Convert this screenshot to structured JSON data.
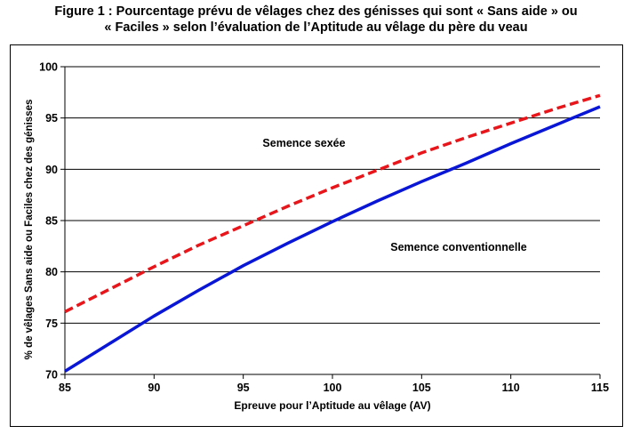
{
  "title_line1": "Figure 1 : Pourcentage prévu de vêlages chez des génisses qui sont « Sans aide » ou",
  "title_line2": "« Faciles » selon l’évaluation  de l’Aptitude  au vêlage du père du veau",
  "chart_data": {
    "type": "line",
    "xlabel": "Epreuve pour l’Aptitude au vêlage (AV)",
    "ylabel": "% de vêlages Sans aide ou Faciles chez des génisses",
    "xlim": [
      85,
      115
    ],
    "ylim": [
      70,
      100
    ],
    "xticks": [
      85,
      90,
      95,
      100,
      105,
      110,
      115
    ],
    "yticks": [
      70,
      75,
      80,
      85,
      90,
      95,
      100
    ],
    "grid": "horizontal",
    "x": [
      85,
      87.5,
      90,
      92.5,
      95,
      97.5,
      100,
      102.5,
      105,
      107.5,
      110,
      112.5,
      115
    ],
    "series": [
      {
        "name": "Semence sexée",
        "color": "#e8161b",
        "dash": "dashed",
        "values": [
          76.1,
          78.3,
          80.5,
          82.6,
          84.5,
          86.4,
          88.2,
          89.9,
          91.6,
          93.1,
          94.5,
          95.9,
          97.2
        ]
      },
      {
        "name": "Semence conventionnelle",
        "color": "#0a16d6",
        "dash": "solid",
        "values": [
          70.3,
          73.0,
          75.7,
          78.2,
          80.6,
          82.8,
          84.9,
          86.9,
          88.8,
          90.6,
          92.5,
          94.3,
          96.1
        ]
      }
    ]
  }
}
